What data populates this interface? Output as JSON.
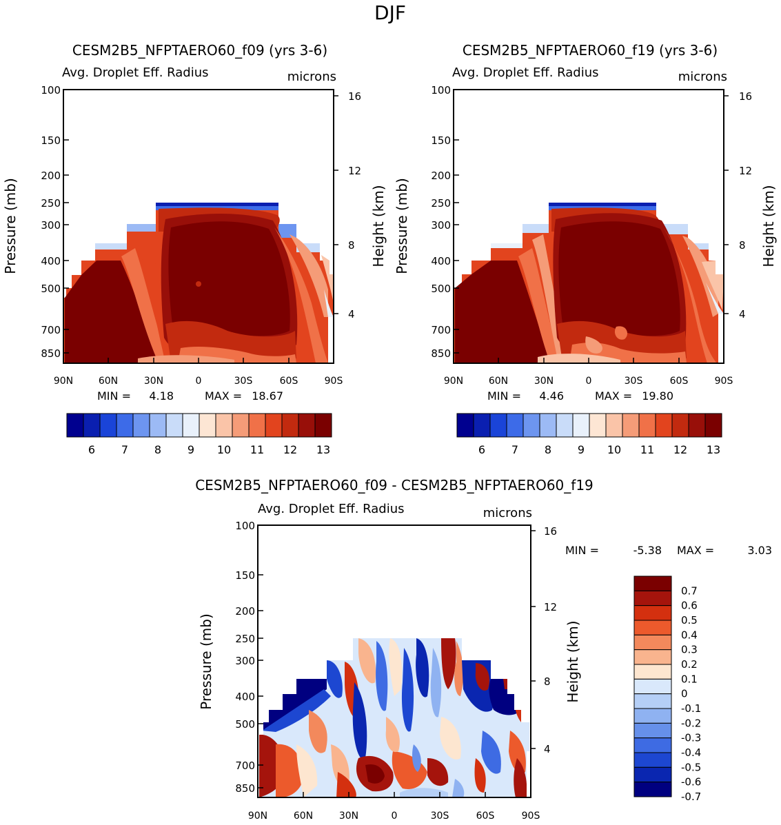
{
  "page": {
    "title": "DJF"
  },
  "panels": [
    {
      "title": "CESM2B5_NFPTAERO60_f09 (yrs 3-6)",
      "variable": "Avg. Droplet Eff. Radius",
      "units": "microns",
      "ylabel_left": "Pressure (mb)",
      "ylabel_right": "Height (km)",
      "min_label": "MIN =",
      "min_value": "4.18",
      "max_label": "MAX =",
      "max_value": "18.67"
    },
    {
      "title": "CESM2B5_NFPTAERO60_f19 (yrs 3-6)",
      "variable": "Avg. Droplet Eff. Radius",
      "units": "microns",
      "ylabel_left": "Pressure (mb)",
      "ylabel_right": "Height (km)",
      "min_label": "MIN =",
      "min_value": "4.46",
      "max_label": "MAX =",
      "max_value": "19.80"
    },
    {
      "title": "CESM2B5_NFPTAERO60_f09 - CESM2B5_NFPTAERO60_f19",
      "variable": "Avg. Droplet Eff. Radius",
      "units": "microns",
      "ylabel_left": "Pressure (mb)",
      "ylabel_right": "Height (km)",
      "min_label": "MIN =",
      "min_value": "-5.38",
      "max_label": "MAX =",
      "max_value": "3.03"
    }
  ],
  "chart_data": [
    {
      "type": "heatmap",
      "title": "CESM2B5_NFPTAERO60_f09 (yrs 3-6)",
      "subtitle": "Avg. Droplet Eff. Radius",
      "units": "microns",
      "xlabel": "",
      "ylabel": "Pressure (mb)",
      "y2label": "Height (km)",
      "x_ticks": [
        "90N",
        "60N",
        "30N",
        "0",
        "30S",
        "60S",
        "90S"
      ],
      "x_range": [
        90,
        -90
      ],
      "y_ticks": [
        100,
        150,
        200,
        250,
        300,
        400,
        500,
        700,
        850
      ],
      "y_range": [
        100,
        1000
      ],
      "y2_ticks": [
        16,
        12,
        8,
        4
      ],
      "colorbar": {
        "levels": [
          6,
          7,
          8,
          9,
          10,
          11,
          12,
          13
        ],
        "colors": [
          "#00008f",
          "#0a1fb0",
          "#1a44d8",
          "#3d6be8",
          "#6d95f0",
          "#9cbaf5",
          "#c9dcf9",
          "#e9f1fb",
          "#fde6d4",
          "#fac4a8",
          "#f59c78",
          "#f07148",
          "#e2441e",
          "#c22a0f",
          "#980f09",
          "#7a0000"
        ]
      },
      "field": "central/tropical values 13-18.7 microns (dark red), lower values near cloud top and high southern latitudes",
      "min": 4.18,
      "max": 18.67
    },
    {
      "type": "heatmap",
      "title": "CESM2B5_NFPTAERO60_f19 (yrs 3-6)",
      "subtitle": "Avg. Droplet Eff. Radius",
      "units": "microns",
      "xlabel": "",
      "ylabel": "Pressure (mb)",
      "y2label": "Height (km)",
      "x_ticks": [
        "90N",
        "60N",
        "30N",
        "0",
        "30S",
        "60S",
        "90S"
      ],
      "x_range": [
        90,
        -90
      ],
      "y_ticks": [
        100,
        150,
        200,
        250,
        300,
        400,
        500,
        700,
        850
      ],
      "y_range": [
        100,
        1000
      ],
      "y2_ticks": [
        16,
        12,
        8,
        4
      ],
      "colorbar": {
        "levels": [
          6,
          7,
          8,
          9,
          10,
          11,
          12,
          13
        ],
        "colors": [
          "#00008f",
          "#0a1fb0",
          "#1a44d8",
          "#3d6be8",
          "#6d95f0",
          "#9cbaf5",
          "#c9dcf9",
          "#e9f1fb",
          "#fde6d4",
          "#fac4a8",
          "#f59c78",
          "#f07148",
          "#e2441e",
          "#c22a0f",
          "#980f09",
          "#7a0000"
        ]
      },
      "field": "central/tropical values 13-19.8 microns (dark red), lower values near cloud top and high southern latitudes",
      "min": 4.46,
      "max": 19.8
    },
    {
      "type": "heatmap",
      "title": "CESM2B5_NFPTAERO60_f09 - CESM2B5_NFPTAERO60_f19",
      "subtitle": "Avg. Droplet Eff. Radius",
      "units": "microns",
      "xlabel": "",
      "ylabel": "Pressure (mb)",
      "y2label": "Height (km)",
      "x_ticks": [
        "90N",
        "60N",
        "30N",
        "0",
        "30S",
        "60S",
        "90S"
      ],
      "x_range": [
        90,
        -90
      ],
      "y_ticks": [
        100,
        150,
        200,
        250,
        300,
        400,
        500,
        700,
        850
      ],
      "y_range": [
        100,
        1000
      ],
      "y2_ticks": [
        16,
        12,
        8,
        4
      ],
      "colorbar": {
        "levels": [
          "0.7",
          "0.6",
          "0.5",
          "0.4",
          "0.3",
          "0.2",
          "0.1",
          "0",
          "-0.1",
          "-0.2",
          "-0.3",
          "-0.4",
          "-0.5",
          "-0.6",
          "-0.7"
        ],
        "colors": [
          "#7a0000",
          "#a5140c",
          "#d4300f",
          "#ec5a2c",
          "#f3895c",
          "#f9b48e",
          "#fde6d0",
          "#d9e8fb",
          "#b5cff6",
          "#8fb2f1",
          "#6690ea",
          "#3e6be3",
          "#1d47d1",
          "#0a26b0",
          "#000080"
        ]
      },
      "field": "mixed positive/negative differences, mostly within -0.7 to 0.7 microns",
      "min": -5.38,
      "max": 3.03
    }
  ]
}
